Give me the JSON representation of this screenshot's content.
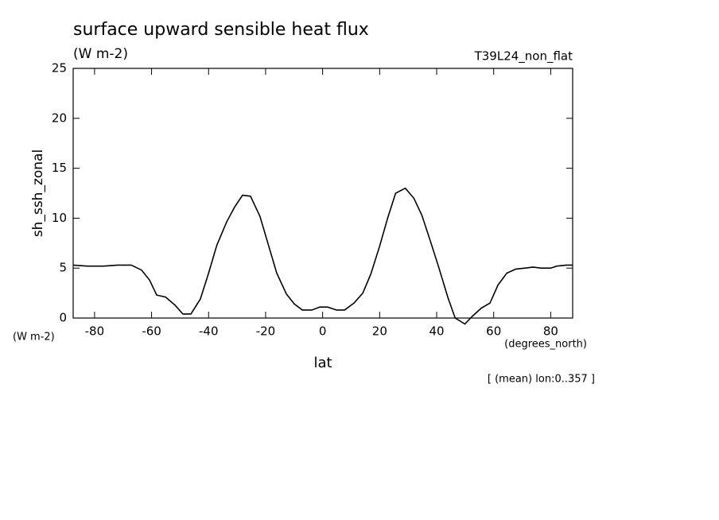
{
  "chart_data": {
    "type": "line",
    "title": "surface upward sensible heat flux",
    "subtitle": "(W m-2)",
    "annotation_right": "T39L24_non_flat",
    "y_label": "sh_ssh_zonal",
    "y_units": "(W m-2)",
    "x_units": "(degrees_north)",
    "x_label": "lat",
    "note": "[ (mean) lon:0..357 ]",
    "x": [
      -87.5,
      -82.5,
      -76.9,
      -71.9,
      -67.1,
      -63.5,
      -60.7,
      -58.2,
      -55.1,
      -51.8,
      -49.0,
      -46.2,
      -42.9,
      -40.1,
      -37.1,
      -33.7,
      -30.9,
      -28.1,
      -25.3,
      -22.0,
      -19.1,
      -16.1,
      -12.7,
      -9.9,
      -7.1,
      -3.8,
      -1.0,
      1.8,
      4.9,
      7.7,
      11.0,
      14.1,
      16.9,
      20.0,
      22.8,
      25.6,
      29.0,
      32.0,
      34.8,
      37.8,
      40.6,
      44.0,
      46.5,
      49.9,
      52.6,
      55.7,
      58.7,
      61.5,
      64.6,
      67.7,
      71.0,
      73.8,
      76.6,
      80.0,
      82.1,
      85.5,
      87.7
    ],
    "series": [
      {
        "name": "sh_ssh_zonal",
        "color": "#000000",
        "values": [
          5.3,
          5.2,
          5.2,
          5.3,
          5.3,
          4.8,
          3.8,
          2.3,
          2.1,
          1.3,
          0.4,
          0.4,
          1.9,
          4.4,
          7.3,
          9.6,
          11.1,
          12.3,
          12.2,
          10.2,
          7.4,
          4.5,
          2.4,
          1.4,
          0.8,
          0.8,
          1.1,
          1.1,
          0.8,
          0.8,
          1.5,
          2.5,
          4.4,
          7.2,
          10.0,
          12.5,
          13.0,
          12.0,
          10.3,
          7.7,
          5.2,
          2.0,
          0.0,
          -0.6,
          0.2,
          1.0,
          1.5,
          3.3,
          4.5,
          4.9,
          5.0,
          5.1,
          5.0,
          5.0,
          5.2,
          5.3,
          5.3
        ]
      }
    ],
    "xlim": [
      -87.5,
      87.7
    ],
    "ylim": [
      0,
      25
    ],
    "xticks": [
      -80,
      -60,
      -40,
      -20,
      0,
      20,
      40,
      60,
      80
    ],
    "yticks": [
      0,
      5,
      10,
      15,
      20,
      25
    ],
    "grid": false
  }
}
